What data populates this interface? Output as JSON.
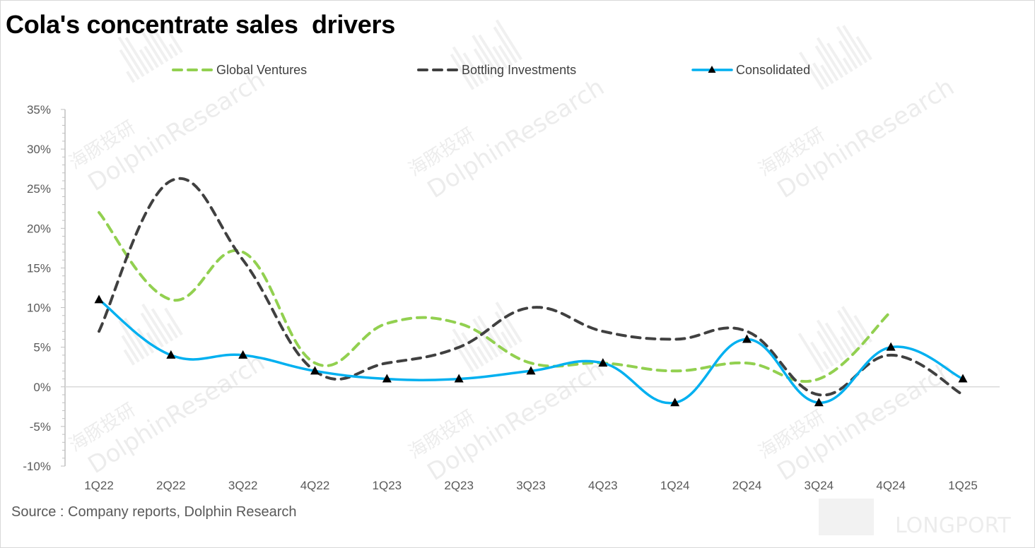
{
  "title": "Cola's concentrate sales  drivers",
  "source": "Source : Company reports, Dolphin Research",
  "watermark": {
    "cn": "海豚投研",
    "en": "DolphinResearch",
    "corner": "LONGPORT"
  },
  "colors": {
    "global_ventures": "#92d050",
    "bottling_investments": "#404040",
    "consolidated": "#00b0f0",
    "axis": "#bfbfbf",
    "zero_line": "#d9d9d9"
  },
  "chart_data": {
    "type": "line",
    "title": "Cola's concentrate sales  drivers",
    "categories": [
      "1Q22",
      "2Q22",
      "3Q22",
      "4Q22",
      "1Q23",
      "2Q23",
      "3Q23",
      "4Q23",
      "1Q24",
      "2Q24",
      "3Q24",
      "4Q24",
      "1Q25"
    ],
    "y_ticks": [
      "35%",
      "30%",
      "25%",
      "20%",
      "15%",
      "10%",
      "5%",
      "0%",
      "-5%",
      "-10%"
    ],
    "ylim": [
      -10,
      35
    ],
    "y_unit": "%",
    "grid": false,
    "legend_position": "top",
    "series": [
      {
        "name": "Global Ventures",
        "key": "global_ventures",
        "style": "dashed",
        "values": [
          22,
          11,
          17,
          3,
          8,
          8,
          3,
          3,
          2,
          3,
          1,
          9.5,
          null
        ]
      },
      {
        "name": "Bottling Investments",
        "key": "bottling_investments",
        "style": "dashed",
        "values": [
          7,
          26,
          16,
          2,
          3,
          5,
          10,
          7,
          6,
          7,
          -1,
          4,
          -1
        ]
      },
      {
        "name": "Consolidated",
        "key": "consolidated",
        "style": "solid-triangle",
        "values": [
          11,
          4,
          4,
          2,
          1,
          1,
          2,
          3,
          -2,
          6,
          -2,
          5,
          1
        ]
      }
    ]
  }
}
